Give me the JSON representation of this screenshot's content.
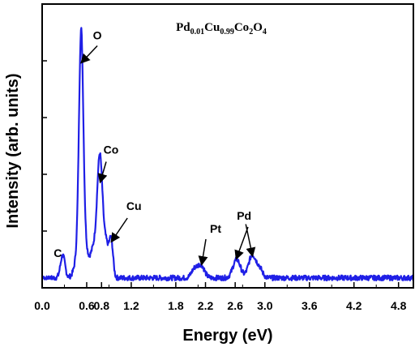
{
  "chart_data": {
    "type": "line",
    "title": "Pd0.01Cu0.99Co2O4",
    "title_parts": [
      {
        "text": "Pd",
        "sub": false
      },
      {
        "text": "0.01",
        "sub": true
      },
      {
        "text": "Cu",
        "sub": false
      },
      {
        "text": "0.99",
        "sub": true
      },
      {
        "text": "Co",
        "sub": false
      },
      {
        "text": "2",
        "sub": true
      },
      {
        "text": "O",
        "sub": false
      },
      {
        "text": "4",
        "sub": true
      }
    ],
    "xlabel": "Energy (eV)",
    "ylabel": "Intensity (arb. units)",
    "xlim": [
      0.0,
      5.0
    ],
    "ylim": [
      0,
      100
    ],
    "x_ticks": [
      "0.0",
      "0.6",
      "0.8",
      "1.2",
      "1.8",
      "2.2",
      "2.6",
      "3.0",
      "3.6",
      "4.2",
      "4.8"
    ],
    "x_tick_values": [
      0.0,
      0.6,
      0.8,
      1.2,
      1.8,
      2.2,
      2.6,
      3.0,
      3.6,
      4.2,
      4.8
    ],
    "y_tick_values": [
      20,
      40,
      60,
      80
    ],
    "grid": false,
    "series": [
      {
        "color": "#1f1fe6",
        "peaks": [
          {
            "center": 0.277,
            "height": 8,
            "width": 0.03
          },
          {
            "center": 0.525,
            "height": 70,
            "width": 0.028
          },
          {
            "center": 0.535,
            "height": 18,
            "width": 0.06
          },
          {
            "center": 0.69,
            "height": 9,
            "width": 0.04
          },
          {
            "center": 0.775,
            "height": 34,
            "width": 0.035
          },
          {
            "center": 0.8,
            "height": 10,
            "width": 0.05
          },
          {
            "center": 0.87,
            "height": 8,
            "width": 0.03
          },
          {
            "center": 0.93,
            "height": 13,
            "width": 0.025
          },
          {
            "center": 2.05,
            "height": 3,
            "width": 0.04
          },
          {
            "center": 2.14,
            "height": 4.5,
            "width": 0.045
          },
          {
            "center": 2.62,
            "height": 6.5,
            "width": 0.05
          },
          {
            "center": 2.83,
            "height": 8,
            "width": 0.05
          },
          {
            "center": 2.93,
            "height": 3,
            "width": 0.04
          }
        ],
        "baseline": 3.5
      }
    ],
    "annotations": [
      {
        "label": "C",
        "x": 0.277,
        "y": 8
      },
      {
        "label": "O",
        "x": 0.525,
        "y": 79
      },
      {
        "label": "Co",
        "x": 0.775,
        "y": 37
      },
      {
        "label": "Cu",
        "x": 0.93,
        "y": 16
      },
      {
        "label": "Pt",
        "x": 2.14,
        "y": 8
      },
      {
        "label": "Pd",
        "x": 2.62,
        "y": 10
      },
      {
        "label": "Pd",
        "x": 2.83,
        "y": 11
      }
    ]
  }
}
